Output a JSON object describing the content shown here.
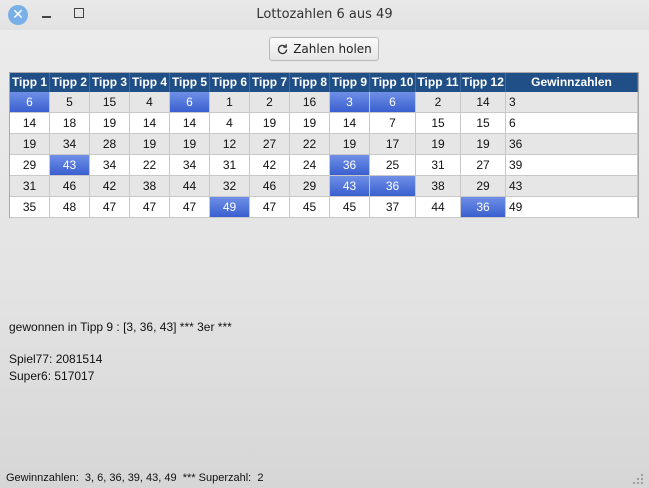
{
  "window": {
    "title": "Lottozahlen 6 aus 49"
  },
  "toolbar": {
    "fetch_label": "Zahlen holen"
  },
  "grid": {
    "headers": [
      "Tipp 1",
      "Tipp 2",
      "Tipp 3",
      "Tipp 4",
      "Tipp 5",
      "Tipp 6",
      "Tipp 7",
      "Tipp 8",
      "Tipp 9",
      "Tipp 10",
      "Tipp 11",
      "Tipp 12",
      "Gewinnzahlen"
    ],
    "rows": [
      [
        "6",
        "5",
        "15",
        "4",
        "6",
        "1",
        "2",
        "16",
        "3",
        "6",
        "2",
        "14",
        "3"
      ],
      [
        "14",
        "18",
        "19",
        "14",
        "14",
        "4",
        "19",
        "19",
        "14",
        "7",
        "15",
        "15",
        "6"
      ],
      [
        "19",
        "34",
        "28",
        "19",
        "19",
        "12",
        "27",
        "22",
        "19",
        "17",
        "19",
        "19",
        "36"
      ],
      [
        "29",
        "43",
        "34",
        "22",
        "34",
        "31",
        "42",
        "24",
        "36",
        "25",
        "31",
        "27",
        "39"
      ],
      [
        "31",
        "46",
        "42",
        "38",
        "44",
        "32",
        "46",
        "29",
        "43",
        "36",
        "38",
        "29",
        "43"
      ],
      [
        "35",
        "48",
        "47",
        "47",
        "47",
        "49",
        "47",
        "45",
        "45",
        "37",
        "44",
        "36",
        "49"
      ]
    ],
    "highlight_color": "#4a6bd8"
  },
  "result": {
    "win_line": "gewonnen in Tipp 9 : [3, 36, 43] *** 3er ***",
    "spiel77": "Spiel77: 2081514",
    "super6": "Super6: 517017"
  },
  "status": {
    "footer": "Gewinnzahlen:  3, 6, 36, 39, 43, 49  *** Superzahl:  2"
  }
}
